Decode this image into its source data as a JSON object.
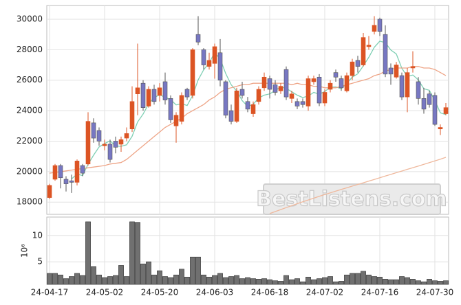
{
  "chart_data": [
    {
      "type": "candlestick",
      "categories": [
        "24-04-17",
        null,
        null,
        null,
        null,
        null,
        null,
        null,
        null,
        null,
        "24-05-02",
        null,
        null,
        null,
        null,
        null,
        null,
        null,
        null,
        null,
        "24-05-20",
        null,
        null,
        null,
        null,
        null,
        null,
        null,
        null,
        null,
        "24-06-03",
        null,
        null,
        null,
        null,
        null,
        null,
        null,
        null,
        null,
        "24-06-18",
        null,
        null,
        null,
        null,
        null,
        null,
        null,
        null,
        null,
        "24-07-02",
        null,
        null,
        null,
        null,
        null,
        null,
        null,
        null,
        null,
        "24-07-16",
        null,
        null,
        null,
        null,
        null,
        null,
        null,
        null,
        null,
        "24-07-30",
        null,
        null
      ],
      "open": [
        18300,
        19500,
        20400,
        19500,
        19400,
        19300,
        20400,
        20500,
        23200,
        22700,
        21700,
        21800,
        22000,
        21800,
        22200,
        22800,
        25100,
        25800,
        24300,
        25400,
        25000,
        25900,
        24800,
        23000,
        23300,
        25400,
        25000,
        29000,
        28000,
        26900,
        27100,
        27800,
        25900,
        24000,
        23300,
        25400,
        24600,
        23800,
        24600,
        25500,
        26100,
        25700,
        25300,
        26700,
        24800,
        24600,
        24600,
        24300,
        25900,
        26200,
        24500,
        25400,
        26500,
        26100,
        25300,
        26300,
        27300,
        27000,
        28200,
        29200,
        30000,
        29000,
        26800,
        26200,
        26300,
        24900,
        26800,
        25900,
        24800,
        25100,
        25000,
        22800,
        23800
      ],
      "high": [
        19200,
        20500,
        20500,
        19700,
        19800,
        20800,
        20500,
        23900,
        23500,
        22900,
        22100,
        22100,
        22300,
        22300,
        22900,
        25600,
        28400,
        26000,
        25600,
        25700,
        25800,
        26500,
        25000,
        23900,
        25200,
        25500,
        28100,
        30200,
        28100,
        27800,
        28400,
        28700,
        26000,
        24400,
        25500,
        25900,
        24900,
        24600,
        25600,
        26500,
        26300,
        26000,
        25800,
        26900,
        25300,
        24800,
        24800,
        26300,
        26300,
        26400,
        25400,
        26000,
        26700,
        26300,
        26500,
        27400,
        27600,
        29100,
        28900,
        30200,
        30100,
        29600,
        27100,
        27200,
        26500,
        26800,
        27900,
        26200,
        25500,
        25300,
        25200,
        23100,
        24500
      ],
      "low": [
        18200,
        19400,
        18900,
        18700,
        18600,
        19100,
        19700,
        20400,
        21900,
        21700,
        21400,
        20600,
        21200,
        21300,
        22000,
        22600,
        23700,
        24000,
        24200,
        24400,
        24600,
        24400,
        23200,
        21900,
        23100,
        24700,
        24800,
        28300,
        26700,
        26700,
        26100,
        25600,
        23500,
        23100,
        23200,
        24800,
        23900,
        23600,
        24400,
        25300,
        24800,
        25000,
        25100,
        24700,
        24500,
        24100,
        24200,
        24000,
        25700,
        24300,
        24300,
        25200,
        25900,
        25300,
        25200,
        26000,
        26500,
        26900,
        28000,
        29000,
        28900,
        26200,
        25700,
        26100,
        24700,
        23900,
        26500,
        24400,
        23800,
        24200,
        23000,
        22400,
        23700
      ],
      "close": [
        19100,
        20400,
        19600,
        19200,
        19300,
        20700,
        19900,
        23300,
        22200,
        22000,
        21800,
        20800,
        21600,
        22100,
        22500,
        24600,
        25500,
        24200,
        25400,
        24600,
        25500,
        24700,
        23400,
        23700,
        25000,
        24900,
        28000,
        28500,
        27000,
        27300,
        28200,
        26000,
        23700,
        23300,
        25300,
        25000,
        24100,
        24400,
        25400,
        26200,
        25400,
        25200,
        25600,
        24900,
        25100,
        24300,
        24400,
        26100,
        26100,
        24500,
        25200,
        25800,
        26200,
        25500,
        26300,
        27200,
        26900,
        28800,
        28300,
        29600,
        29200,
        26400,
        26400,
        27000,
        24900,
        26500,
        26900,
        24800,
        24100,
        24400,
        23100,
        22900,
        24200
      ],
      "up_color": "#dc5424",
      "down_color": "#7777c2",
      "lines": [
        {
          "color": "#7fcfb4",
          "values": [
            null,
            null,
            null,
            null,
            19520,
            19840,
            19740,
            20480,
            21080,
            21620,
            21840,
            22020,
            21680,
            21660,
            21760,
            22320,
            23260,
            23780,
            24440,
            24860,
            25040,
            24880,
            24720,
            24380,
            24460,
            24340,
            25000,
            26020,
            26680,
            27140,
            27800,
            27400,
            26440,
            25700,
            25300,
            24660,
            24280,
            24420,
            24840,
            25020,
            25100,
            25320,
            25560,
            25460,
            25240,
            25020,
            24860,
            24960,
            25200,
            25080,
            25260,
            25540,
            25560,
            25440,
            25800,
            26200,
            26420,
            26940,
            27500,
            28160,
            28560,
            28460,
            27980,
            27720,
            26780,
            26240,
            26340,
            26020,
            25440,
            25340,
            24660,
            23860,
            23740
          ]
        },
        {
          "color": "#eea486",
          "values": [
            19900,
            19950,
            20000,
            20050,
            20100,
            20150,
            20200,
            20250,
            20300,
            20350,
            20400,
            20500,
            20550,
            20600,
            20800,
            21100,
            21400,
            21700,
            22000,
            22300,
            22600,
            22900,
            23100,
            23300,
            23500,
            23800,
            24000,
            24200,
            24400,
            24700,
            24900,
            25200,
            25400,
            25500,
            25600,
            25700,
            25700,
            25800,
            25800,
            25800,
            25800,
            25800,
            25800,
            25800,
            25700,
            25800,
            25700,
            25700,
            25600,
            25600,
            25500,
            25500,
            25500,
            25600,
            25700,
            25800,
            25900,
            26000,
            26100,
            26300,
            26400,
            26600,
            26700,
            26800,
            26800,
            26800,
            26900,
            26900,
            26800,
            26800,
            26700,
            26500,
            26300
          ]
        },
        {
          "color": "#efb89c",
          "values": [
            null,
            null,
            null,
            null,
            null,
            null,
            null,
            null,
            null,
            null,
            null,
            null,
            null,
            null,
            null,
            null,
            null,
            null,
            null,
            null,
            null,
            null,
            null,
            null,
            null,
            null,
            null,
            null,
            null,
            null,
            null,
            null,
            null,
            null,
            null,
            null,
            null,
            null,
            null,
            null,
            17250,
            17380,
            17510,
            17640,
            17770,
            17900,
            18020,
            18140,
            18260,
            18380,
            18500,
            18610,
            18720,
            18830,
            18940,
            19050,
            19160,
            19270,
            19380,
            19490,
            19600,
            19710,
            19820,
            19930,
            20040,
            20150,
            20260,
            20370,
            20480,
            20590,
            20700,
            20820,
            20940
          ]
        }
      ],
      "ylim": [
        17200,
        30900
      ],
      "yticks": [
        {
          "value": 18000,
          "label": "18000"
        },
        {
          "value": 20000,
          "label": "20000"
        },
        {
          "value": 22000,
          "label": "22000"
        },
        {
          "value": 24000,
          "label": "24000"
        },
        {
          "value": 26000,
          "label": "26000"
        },
        {
          "value": 28000,
          "label": "28000"
        },
        {
          "value": 30000,
          "label": "30000"
        }
      ],
      "grid": true,
      "watermark": "BestListens.com"
    },
    {
      "type": "bar",
      "ylabel": "10⁶",
      "values": [
        2.8,
        2.8,
        2.5,
        1.8,
        2.2,
        2.8,
        2.4,
        12.6,
        4.1,
        2.5,
        2.0,
        2.2,
        2.4,
        4.3,
        2.2,
        12.6,
        12.5,
        4.6,
        5.0,
        2.5,
        3.3,
        2.2,
        2.0,
        2.5,
        3.6,
        2.1,
        5.9,
        5.9,
        2.5,
        2.1,
        2.4,
        2.8,
        2.0,
        2.2,
        2.4,
        1.8,
        2.0,
        1.8,
        1.7,
        1.8,
        1.6,
        1.4,
        1.3,
        2.4,
        1.6,
        1.8,
        1.2,
        2.1,
        1.6,
        1.8,
        2.0,
        2.2,
        1.2,
        1.3,
        2.5,
        2.8,
        2.8,
        3.2,
        2.5,
        2.2,
        2.1,
        1.7,
        1.6,
        1.6,
        2.2,
        2.0,
        1.7,
        1.4,
        1.2,
        1.7,
        1.4,
        1.3,
        1.4
      ],
      "color": "#707070",
      "ylim": [
        0.7,
        13.5
      ],
      "yticks": [
        5,
        10
      ],
      "grid": true
    }
  ]
}
